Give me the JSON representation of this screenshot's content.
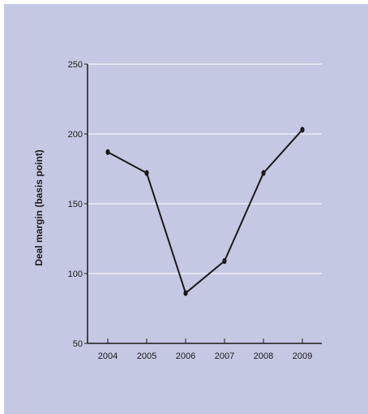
{
  "colors": {
    "background": "#c5c8e3",
    "gridline": "#ffffff",
    "line": "#1a1a1a"
  },
  "chart_data": {
    "type": "line",
    "title": "",
    "xlabel": "",
    "ylabel": "Deal margin (basis point)",
    "categories": [
      "2004",
      "2005",
      "2006",
      "2007",
      "2008",
      "2009"
    ],
    "series": [
      {
        "values": [
          187,
          172,
          86,
          109,
          172,
          203
        ]
      }
    ],
    "ylim": [
      50,
      250
    ],
    "yticks": [
      250,
      200,
      150,
      100,
      50
    ],
    "grid": true,
    "legend": "none"
  }
}
